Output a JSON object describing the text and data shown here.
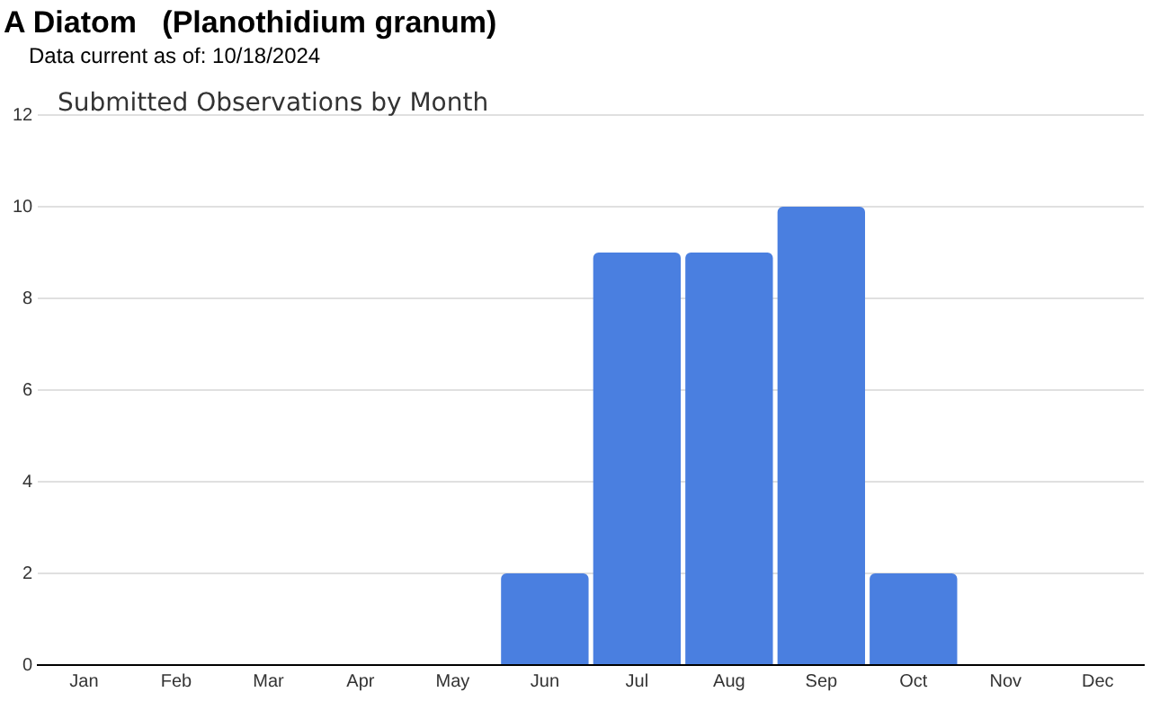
{
  "chart_data": {
    "type": "bar",
    "title": "A Diatom   (Planothidium granum)",
    "subtitle": "Data current as of: 10/18/2024",
    "annotations": [
      "Submitted Observations by Month"
    ],
    "categories": [
      "Jan",
      "Feb",
      "Mar",
      "Apr",
      "May",
      "Jun",
      "Jul",
      "Aug",
      "Sep",
      "Oct",
      "Nov",
      "Dec"
    ],
    "values": [
      0,
      0,
      0,
      0,
      0,
      2,
      9,
      9,
      10,
      2,
      0,
      0
    ],
    "color": "#4a7fe0",
    "ylim": [
      0,
      12
    ],
    "yticks": [
      0,
      2,
      4,
      6,
      8,
      10,
      12
    ],
    "grid": "y",
    "legend": false
  }
}
